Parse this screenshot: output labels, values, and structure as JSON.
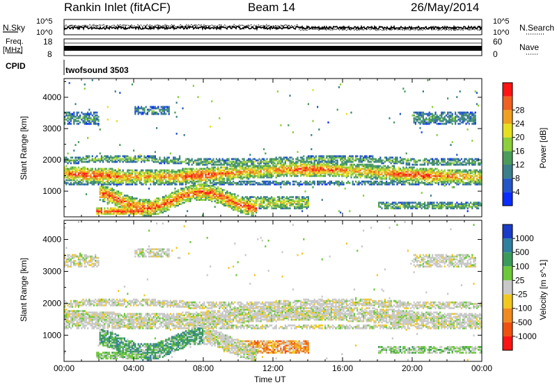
{
  "header": {
    "station": "Rankin Inlet (fitACF)",
    "beam": "Beam 14",
    "date": "26/May/2014"
  },
  "noise_panel": {
    "left_label": "N.Sky",
    "right_label": "N.Search",
    "left_ticks": [
      "10^5",
      "10^0"
    ],
    "right_ticks": [
      "10^5",
      "10^0"
    ]
  },
  "freq_panel": {
    "left_label_1": "Freq.",
    "left_label_2": "[MHz]",
    "right_label": "Nave",
    "left_ticks": [
      "18",
      "8"
    ],
    "right_ticks": [
      "60",
      "0"
    ]
  },
  "cpid_panel": {
    "label": "CPID",
    "program": "twofsound 3503"
  },
  "time_axis": {
    "label": "Time UT",
    "ticks": [
      "00:00",
      "04:00",
      "08:00",
      "12:00",
      "16:00",
      "20:00",
      "00:00"
    ]
  },
  "chart_data": [
    {
      "type": "heatmap",
      "title": "",
      "ylabel": "Slant Range [km]",
      "yticks": [
        1000,
        2000,
        3000,
        4000
      ],
      "ylim": [
        180,
        4600
      ],
      "xlim_hours": [
        0,
        24
      ],
      "colorbar_label": "Power [dB]",
      "colorbar_ticks": [
        "4",
        "8",
        "12",
        "16",
        "20",
        "24",
        "28"
      ],
      "colorbar_colors": [
        "#0a2cff",
        "#2456c8",
        "#3a7f8a",
        "#4a9c5a",
        "#8ccf3a",
        "#e6df20",
        "#f0a020",
        "#f06020",
        "#ff1414"
      ]
    },
    {
      "type": "heatmap",
      "title": "",
      "ylabel": "Slant Range [km]",
      "yticks": [
        1000,
        2000,
        3000,
        4000
      ],
      "ylim": [
        180,
        4600
      ],
      "xlim_hours": [
        0,
        24
      ],
      "colorbar_label": "Velocity [m s^-1]",
      "colorbar_ticks": [
        "1000",
        "500",
        "100",
        "25",
        "-25",
        "-100",
        "-500",
        "-1000"
      ],
      "colorbar_colors": [
        "#1a3cc8",
        "#2f7fa0",
        "#3a9a5a",
        "#6cc83a",
        "#c8c8c8",
        "#f0c820",
        "#f08a20",
        "#f05010",
        "#ff1414"
      ]
    }
  ]
}
